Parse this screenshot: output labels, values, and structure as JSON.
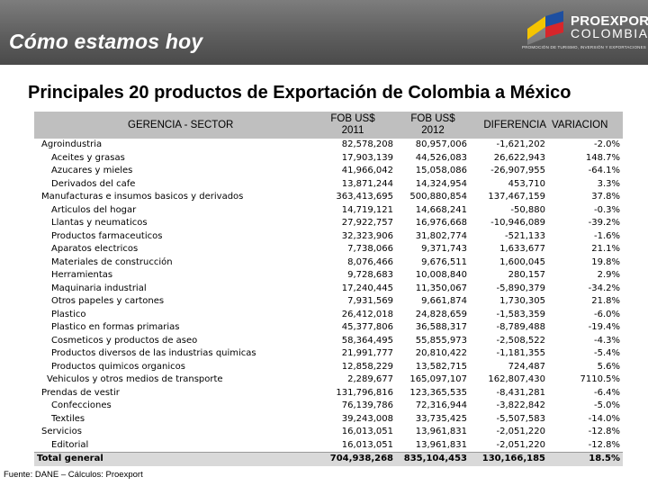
{
  "header": {
    "title": "Cómo estamos hoy",
    "logo": {
      "word1": "PROEXPORT",
      "word2": "COLOMBIA",
      "tagline": "PROMOCIÓN DE TURISMO, INVERSIÓN Y EXPORTACIONES",
      "colors": {
        "yellow": "#f5c400",
        "blue": "#1e4fa0",
        "red": "#d7262b"
      }
    }
  },
  "heading": "Principales 20 productos de Exportación de Colombia a México",
  "table": {
    "columns": {
      "sector": "GERENCIA - SECTOR",
      "fob2011_l1": "FOB US$",
      "fob2011_l2": "2011",
      "fob2012_l1": "FOB US$",
      "fob2012_l2": "2012",
      "diferencia": "DIFERENCIA",
      "variacion": "VARIACION"
    },
    "rows": [
      {
        "name": "Agroindustria",
        "fob2011": "82,578,208",
        "fob2012": "80,957,006",
        "diferencia": "-1,621,202",
        "variacion": "-2.0%"
      },
      {
        "name": "Aceites y grasas",
        "fob2011": "17,903,139",
        "fob2012": "44,526,083",
        "diferencia": "26,622,943",
        "variacion": "148.7%"
      },
      {
        "name": "Azucares y mieles",
        "fob2011": "41,966,042",
        "fob2012": "15,058,086",
        "diferencia": "-26,907,955",
        "variacion": "-64.1%"
      },
      {
        "name": "Derivados del cafe",
        "fob2011": "13,871,244",
        "fob2012": "14,324,954",
        "diferencia": "453,710",
        "variacion": "3.3%"
      },
      {
        "name": "Manufacturas e insumos basicos y derivados",
        "fob2011": "363,413,695",
        "fob2012": "500,880,854",
        "diferencia": "137,467,159",
        "variacion": "37.8%"
      },
      {
        "name": "Articulos del hogar",
        "fob2011": "14,719,121",
        "fob2012": "14,668,241",
        "diferencia": "-50,880",
        "variacion": "-0.3%"
      },
      {
        "name": "Llantas y neumaticos",
        "fob2011": "27,922,757",
        "fob2012": "16,976,668",
        "diferencia": "-10,946,089",
        "variacion": "-39.2%"
      },
      {
        "name": "Productos farmaceuticos",
        "fob2011": "32,323,906",
        "fob2012": "31,802,774",
        "diferencia": "-521,133",
        "variacion": "-1.6%"
      },
      {
        "name": "Aparatos electricos",
        "fob2011": "7,738,066",
        "fob2012": "9,371,743",
        "diferencia": "1,633,677",
        "variacion": "21.1%"
      },
      {
        "name": "Materiales de construcción",
        "fob2011": "8,076,466",
        "fob2012": "9,676,511",
        "diferencia": "1,600,045",
        "variacion": "19.8%"
      },
      {
        "name": "Herramientas",
        "fob2011": "9,728,683",
        "fob2012": "10,008,840",
        "diferencia": "280,157",
        "variacion": "2.9%"
      },
      {
        "name": "Maquinaria industrial",
        "fob2011": "17,240,445",
        "fob2012": "11,350,067",
        "diferencia": "-5,890,379",
        "variacion": "-34.2%"
      },
      {
        "name": "Otros papeles y cartones",
        "fob2011": "7,931,569",
        "fob2012": "9,661,874",
        "diferencia": "1,730,305",
        "variacion": "21.8%"
      },
      {
        "name": "Plastico",
        "fob2011": "26,412,018",
        "fob2012": "24,828,659",
        "diferencia": "-1,583,359",
        "variacion": "-6.0%"
      },
      {
        "name": "Plastico en formas primarias",
        "fob2011": "45,377,806",
        "fob2012": "36,588,317",
        "diferencia": "-8,789,488",
        "variacion": "-19.4%"
      },
      {
        "name": "Cosmeticos y productos de aseo",
        "fob2011": "58,364,495",
        "fob2012": "55,855,973",
        "diferencia": "-2,508,522",
        "variacion": "-4.3%"
      },
      {
        "name": "Productos diversos de las industrias quimicas",
        "fob2011": "21,991,777",
        "fob2012": "20,810,422",
        "diferencia": "-1,181,355",
        "variacion": "-5.4%"
      },
      {
        "name": "Productos quimicos organicos",
        "fob2011": "12,858,229",
        "fob2012": "13,582,715",
        "diferencia": "724,487",
        "variacion": "5.6%"
      },
      {
        "name": "Vehiculos y otros medios de transporte",
        "fob2011": "2,289,677",
        "fob2012": "165,097,107",
        "diferencia": "162,807,430",
        "variacion": "7110.5%"
      },
      {
        "name": "Prendas de vestir",
        "fob2011": "131,796,816",
        "fob2012": "123,365,535",
        "diferencia": "-8,431,281",
        "variacion": "-6.4%"
      },
      {
        "name": "Confecciones",
        "fob2011": "76,139,786",
        "fob2012": "72,316,944",
        "diferencia": "-3,822,842",
        "variacion": "-5.0%"
      },
      {
        "name": "Textiles",
        "fob2011": "39,243,008",
        "fob2012": "33,735,425",
        "diferencia": "-5,507,583",
        "variacion": "-14.0%"
      },
      {
        "name": "Servicios",
        "fob2011": "16,013,051",
        "fob2012": "13,961,831",
        "diferencia": "-2,051,220",
        "variacion": "-12.8%"
      },
      {
        "name": "Editorial",
        "fob2011": "16,013,051",
        "fob2012": "13,961,831",
        "diferencia": "-2,051,220",
        "variacion": "-12.8%"
      },
      {
        "name": "Total general",
        "fob2011": "704,938,268",
        "fob2012": "835,104,453",
        "diferencia": "130,166,185",
        "variacion": "18.5%"
      }
    ]
  },
  "source": "Fuente: DANE – Cálculos: Proexport"
}
